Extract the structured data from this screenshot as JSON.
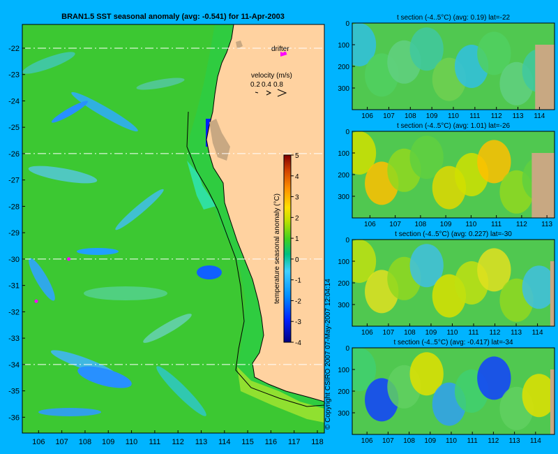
{
  "chart_data": [
    {
      "type": "heatmap",
      "title": "BRAN1.5 SST seasonal anomaly (avg: -0.541) for 11-Apr-2003",
      "x_ticks": [
        106,
        107,
        108,
        109,
        110,
        111,
        112,
        113,
        114,
        115,
        116,
        117,
        118
      ],
      "y_ticks": [
        -22,
        -23,
        -24,
        -25,
        -26,
        -27,
        -28,
        -29,
        -30,
        -31,
        -32,
        -33,
        -34,
        -35,
        -36
      ],
      "xlim": [
        105.3,
        118.3
      ],
      "ylim": [
        -36.6,
        -21.1
      ],
      "section_latitudes": [
        -22,
        -26,
        -30,
        -34
      ],
      "drifter_label": "drifter",
      "drifters": [
        [
          116.6,
          -22.2
        ],
        [
          107.3,
          -30.0
        ],
        [
          105.9,
          -31.6
        ]
      ],
      "velocity_legend": {
        "title": "velocity (m/s)",
        "labels": [
          "0.2",
          "0.4",
          "0.8"
        ]
      },
      "colorbar": {
        "label": "temperature seasonal anomaly (°C)",
        "ticks": [
          5,
          4,
          3,
          2,
          1,
          0,
          -1,
          -2,
          -3,
          -4
        ],
        "range": [
          -4,
          5
        ]
      }
    },
    {
      "type": "heatmap",
      "title": "t section (-4..5°C) (avg: 0.19) lat=-22",
      "x_ticks": [
        106,
        107,
        108,
        109,
        110,
        111,
        112,
        113,
        114
      ],
      "y_ticks": [
        0,
        100,
        200,
        300
      ],
      "xlim": [
        105.3,
        114.7
      ],
      "ylim": [
        400,
        0
      ],
      "coast_lon": 113.8
    },
    {
      "type": "heatmap",
      "title": "t section (-4..5°C) (avg: 1.01) lat=-26",
      "x_ticks": [
        106,
        107,
        108,
        109,
        110,
        111,
        112,
        113
      ],
      "y_ticks": [
        0,
        100,
        200,
        300
      ],
      "xlim": [
        105.3,
        113.3
      ],
      "ylim": [
        400,
        0
      ],
      "coast_lon": 112.4
    },
    {
      "type": "heatmap",
      "title": "t section (-4..5°C) (avg: 0.227) lat=-30",
      "x_ticks": [
        106,
        107,
        108,
        109,
        110,
        111,
        112,
        113,
        114
      ],
      "y_ticks": [
        0,
        100,
        200,
        300
      ],
      "xlim": [
        105.3,
        114.8
      ],
      "ylim": [
        400,
        0
      ],
      "coast_lon": 114.6
    },
    {
      "type": "heatmap",
      "title": "t section (-4..5°C) (avg: -0.417) lat=-34",
      "x_ticks": [
        106,
        107,
        108,
        109,
        110,
        111,
        112,
        113,
        114
      ],
      "y_ticks": [
        0,
        100,
        200,
        300
      ],
      "xlim": [
        105.3,
        114.9
      ],
      "ylim": [
        400,
        0
      ],
      "coast_lon": 114.7
    }
  ],
  "copyright": "© Copyright CSIRO 2007  07-May-2007 12:04:14",
  "colors": {
    "background": "#00b4ff",
    "ocean_base": "#3cc832",
    "land": "#ffd2a0",
    "section_land": "#c8a882",
    "drifter": "#ff00ff"
  }
}
